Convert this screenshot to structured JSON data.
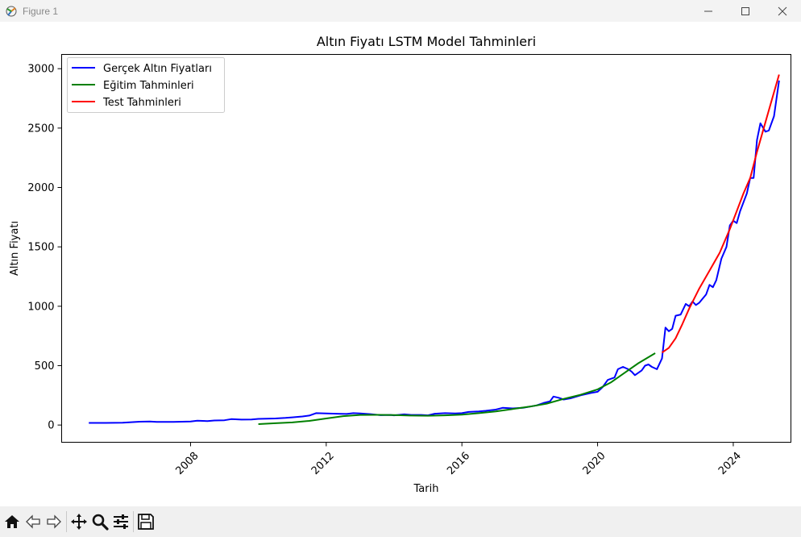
{
  "window": {
    "title": "Figure 1"
  },
  "toolbar": {
    "buttons": [
      "home-icon",
      "back-icon",
      "forward-icon",
      "pan-icon",
      "zoom-icon",
      "configure-icon",
      "save-icon"
    ]
  },
  "colors": {
    "actual": "#0000ff",
    "train": "#008000",
    "test": "#ff0000"
  },
  "chart_data": {
    "type": "line",
    "title": "Altın Fiyatı LSTM Model Tahminleri",
    "xlabel": "Tarih",
    "ylabel": "Altın Fiyatı",
    "xlim": [
      2004.2,
      2025.7
    ],
    "ylim": [
      -145,
      3120
    ],
    "xticks": [
      2008,
      2012,
      2016,
      2020,
      2024
    ],
    "yticks": [
      0,
      500,
      1000,
      1500,
      2000,
      2500,
      3000
    ],
    "legend_position": "top-left",
    "grid": false,
    "series": [
      {
        "name": "Gerçek Altın Fiyatları",
        "color": "#0000ff",
        "points": [
          [
            2005.0,
            18
          ],
          [
            2005.5,
            18
          ],
          [
            2006.0,
            20
          ],
          [
            2006.5,
            28
          ],
          [
            2006.8,
            30
          ],
          [
            2007.0,
            27
          ],
          [
            2007.5,
            27
          ],
          [
            2008.0,
            30
          ],
          [
            2008.2,
            37
          ],
          [
            2008.5,
            33
          ],
          [
            2008.7,
            38
          ],
          [
            2009.0,
            40
          ],
          [
            2009.2,
            50
          ],
          [
            2009.5,
            46
          ],
          [
            2009.8,
            47
          ],
          [
            2010.0,
            52
          ],
          [
            2010.5,
            55
          ],
          [
            2010.8,
            60
          ],
          [
            2011.0,
            65
          ],
          [
            2011.3,
            72
          ],
          [
            2011.5,
            80
          ],
          [
            2011.7,
            100
          ],
          [
            2012.0,
            97
          ],
          [
            2012.3,
            95
          ],
          [
            2012.6,
            93
          ],
          [
            2012.8,
            100
          ],
          [
            2013.0,
            97
          ],
          [
            2013.3,
            92
          ],
          [
            2013.6,
            83
          ],
          [
            2013.9,
            85
          ],
          [
            2014.0,
            82
          ],
          [
            2014.3,
            90
          ],
          [
            2014.5,
            85
          ],
          [
            2014.8,
            85
          ],
          [
            2015.0,
            82
          ],
          [
            2015.2,
            95
          ],
          [
            2015.5,
            100
          ],
          [
            2015.8,
            97
          ],
          [
            2016.0,
            100
          ],
          [
            2016.2,
            110
          ],
          [
            2016.5,
            115
          ],
          [
            2016.7,
            120
          ],
          [
            2017.0,
            130
          ],
          [
            2017.2,
            145
          ],
          [
            2017.5,
            140
          ],
          [
            2017.8,
            145
          ],
          [
            2018.0,
            155
          ],
          [
            2018.2,
            165
          ],
          [
            2018.4,
            185
          ],
          [
            2018.6,
            200
          ],
          [
            2018.7,
            240
          ],
          [
            2018.85,
            230
          ],
          [
            2019.0,
            215
          ],
          [
            2019.2,
            225
          ],
          [
            2019.5,
            250
          ],
          [
            2019.8,
            270
          ],
          [
            2020.0,
            280
          ],
          [
            2020.15,
            320
          ],
          [
            2020.3,
            380
          ],
          [
            2020.5,
            400
          ],
          [
            2020.6,
            470
          ],
          [
            2020.75,
            490
          ],
          [
            2020.9,
            470
          ],
          [
            2021.0,
            450
          ],
          [
            2021.1,
            420
          ],
          [
            2021.3,
            460
          ],
          [
            2021.4,
            500
          ],
          [
            2021.5,
            510
          ],
          [
            2021.6,
            490
          ],
          [
            2021.75,
            470
          ],
          [
            2021.9,
            560
          ],
          [
            2022.0,
            820
          ],
          [
            2022.1,
            790
          ],
          [
            2022.2,
            810
          ],
          [
            2022.3,
            920
          ],
          [
            2022.45,
            930
          ],
          [
            2022.6,
            1020
          ],
          [
            2022.7,
            1000
          ],
          [
            2022.8,
            1040
          ],
          [
            2022.9,
            1010
          ],
          [
            2023.0,
            1030
          ],
          [
            2023.2,
            1100
          ],
          [
            2023.3,
            1180
          ],
          [
            2023.4,
            1160
          ],
          [
            2023.5,
            1220
          ],
          [
            2023.65,
            1400
          ],
          [
            2023.8,
            1500
          ],
          [
            2023.9,
            1680
          ],
          [
            2024.0,
            1720
          ],
          [
            2024.1,
            1700
          ],
          [
            2024.2,
            1800
          ],
          [
            2024.4,
            1950
          ],
          [
            2024.5,
            2080
          ],
          [
            2024.6,
            2080
          ],
          [
            2024.7,
            2400
          ],
          [
            2024.8,
            2540
          ],
          [
            2024.95,
            2470
          ],
          [
            2025.05,
            2480
          ],
          [
            2025.2,
            2600
          ],
          [
            2025.35,
            2900
          ]
        ]
      },
      {
        "name": "Eğitim Tahminleri",
        "color": "#008000",
        "points": [
          [
            2010.0,
            8
          ],
          [
            2010.5,
            15
          ],
          [
            2011.0,
            22
          ],
          [
            2011.5,
            35
          ],
          [
            2012.0,
            55
          ],
          [
            2012.5,
            75
          ],
          [
            2013.0,
            85
          ],
          [
            2013.5,
            86
          ],
          [
            2014.0,
            84
          ],
          [
            2014.5,
            80
          ],
          [
            2015.0,
            78
          ],
          [
            2015.5,
            82
          ],
          [
            2016.0,
            88
          ],
          [
            2016.5,
            100
          ],
          [
            2017.0,
            115
          ],
          [
            2017.5,
            135
          ],
          [
            2018.0,
            155
          ],
          [
            2018.5,
            180
          ],
          [
            2019.0,
            220
          ],
          [
            2019.5,
            255
          ],
          [
            2020.0,
            300
          ],
          [
            2020.4,
            360
          ],
          [
            2020.8,
            440
          ],
          [
            2021.2,
            520
          ],
          [
            2021.7,
            605
          ]
        ]
      },
      {
        "name": "Test Tahminleri",
        "color": "#ff0000",
        "points": [
          [
            2021.9,
            610
          ],
          [
            2022.1,
            650
          ],
          [
            2022.3,
            730
          ],
          [
            2022.5,
            850
          ],
          [
            2022.7,
            980
          ],
          [
            2023.0,
            1150
          ],
          [
            2023.3,
            1300
          ],
          [
            2023.6,
            1450
          ],
          [
            2023.9,
            1650
          ],
          [
            2024.1,
            1800
          ],
          [
            2024.3,
            1950
          ],
          [
            2024.5,
            2080
          ],
          [
            2024.7,
            2300
          ],
          [
            2024.9,
            2500
          ],
          [
            2025.1,
            2700
          ],
          [
            2025.35,
            2950
          ]
        ]
      }
    ]
  }
}
